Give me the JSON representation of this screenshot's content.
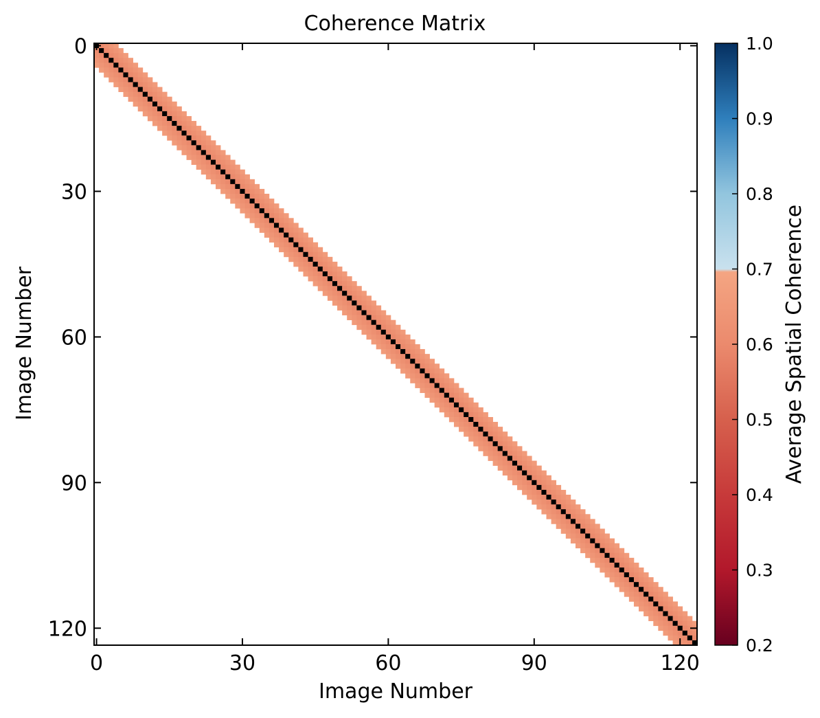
{
  "chart_data": {
    "type": "heatmap",
    "title": "Coherence Matrix",
    "xlabel": "Image Number",
    "ylabel": "Image Number",
    "n": 124,
    "xlim": [
      0,
      123
    ],
    "ylim": [
      0,
      123
    ],
    "x_ticks": [
      0,
      30,
      60,
      90,
      120
    ],
    "y_ticks": [
      0,
      30,
      60,
      90,
      120
    ],
    "band_half_width": 4,
    "diagonal_value": 1.0,
    "off_diagonal_value": 0.62,
    "off_diagonal_values_by_distance": [
      1.0,
      0.6,
      0.62,
      0.64,
      0.66
    ],
    "outside_band": "no data (white)",
    "colorbar": {
      "label": "Average Spatial Coherence",
      "range": [
        0.2,
        1.0
      ],
      "ticks": [
        "0.2",
        "0.3",
        "0.4",
        "0.5",
        "0.6",
        "0.7",
        "0.8",
        "0.9",
        "1.0"
      ],
      "colormap": "RdBu"
    }
  }
}
